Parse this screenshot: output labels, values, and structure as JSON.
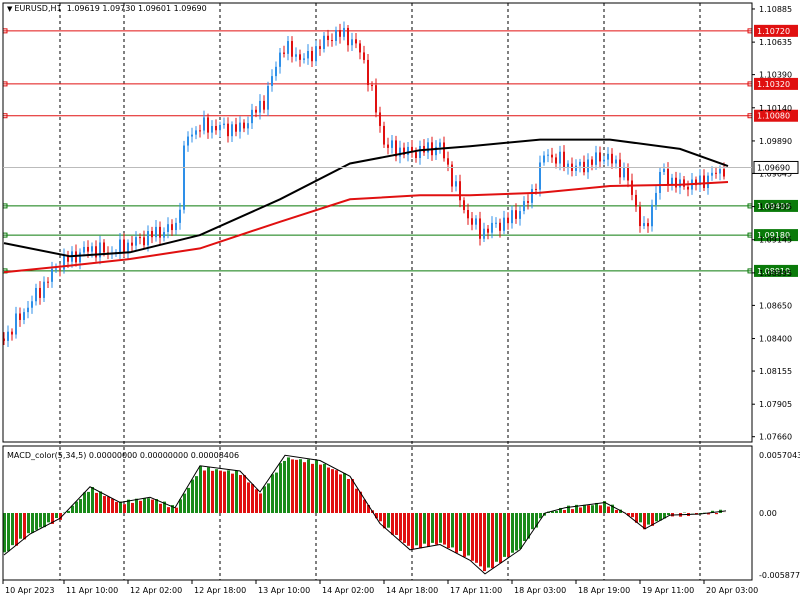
{
  "header": {
    "arrow_icon": "triangle-down-icon",
    "symbol": "EURUSD,H1",
    "open": "1.09619",
    "high": "1.09730",
    "low": "1.09601",
    "close": "1.09690"
  },
  "indicator": {
    "name": "MACD_color(5,34,5)",
    "values": "0.00000000 0.00000000 0.00008406"
  },
  "colors": {
    "bull": "#2e8fe8",
    "bear": "#e01010",
    "resistance": "#e01010",
    "support": "#0a7a0a",
    "ma_fast": "#e01010",
    "ma_slow": "#000000",
    "macd_up": "#1a8a1a",
    "macd_down": "#e01010"
  },
  "price_axis": {
    "labels": [
      "1.10885",
      "1.10635",
      "1.10390",
      "1.10140",
      "1.09890",
      "1.09645",
      "1.09395",
      "1.09145",
      "1.08895",
      "1.08650",
      "1.08400",
      "1.08155",
      "1.07905",
      "1.07660"
    ]
  },
  "macd_axis": {
    "labels": [
      "0.0057043",
      "0.00",
      "-0.0058778"
    ]
  },
  "time_axis": {
    "labels": [
      "10 Apr 2023",
      "11 Apr 10:00",
      "12 Apr 02:00",
      "12 Apr 18:00",
      "13 Apr 10:00",
      "14 Apr 02:00",
      "14 Apr 18:00",
      "17 Apr 11:00",
      "18 Apr 03:00",
      "18 Apr 19:00",
      "19 Apr 11:00",
      "20 Apr 03:00"
    ]
  },
  "levels": [
    {
      "price": "1.10720",
      "kind": "resistance"
    },
    {
      "price": "1.10320",
      "kind": "resistance"
    },
    {
      "price": "1.10080",
      "kind": "resistance"
    },
    {
      "price": "1.09400",
      "kind": "support"
    },
    {
      "price": "1.09180",
      "kind": "support"
    },
    {
      "price": "1.08910",
      "kind": "support"
    }
  ],
  "current_price": "1.09690",
  "chart_data": {
    "type": "line",
    "title": "EURUSD,H1",
    "ylim": [
      1.0762,
      1.1093
    ],
    "x": [
      "10 Apr 2023",
      "11 Apr 10:00",
      "12 Apr 02:00",
      "12 Apr 18:00",
      "13 Apr 10:00",
      "14 Apr 02:00",
      "14 Apr 18:00",
      "17 Apr 11:00",
      "18 Apr 03:00",
      "18 Apr 19:00",
      "19 Apr 11:00",
      "20 Apr 03:00"
    ],
    "series": [
      {
        "values": [
          1.084,
          1.0905,
          1.0925,
          1.1,
          1.106,
          1.107,
          1.1,
          1.092,
          1.098,
          1.0978,
          1.0955,
          1.0968
        ]
      },
      {
        "values": [
          1.089,
          1.0895,
          1.09,
          1.0908,
          1.0928,
          1.0945,
          1.0948,
          1.0948,
          1.095,
          1.0955,
          1.0956,
          1.0958
        ]
      },
      {
        "values": [
          1.0912,
          1.0902,
          1.0905,
          1.0918,
          1.0945,
          1.0972,
          1.0982,
          1.0985,
          1.099,
          1.099,
          1.0983,
          1.097
        ]
      }
    ]
  }
}
